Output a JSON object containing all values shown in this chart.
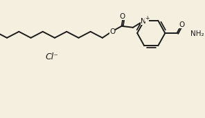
{
  "bg_color": "#f5efe0",
  "line_color": "#1a1a1a",
  "line_width": 1.4,
  "text_color": "#1a1a1a",
  "font_size": 8,
  "cl_label": "Cl⁻",
  "n_label": "N",
  "nplus_label": "+",
  "o_label": "O",
  "nh2_label": "NH₂"
}
